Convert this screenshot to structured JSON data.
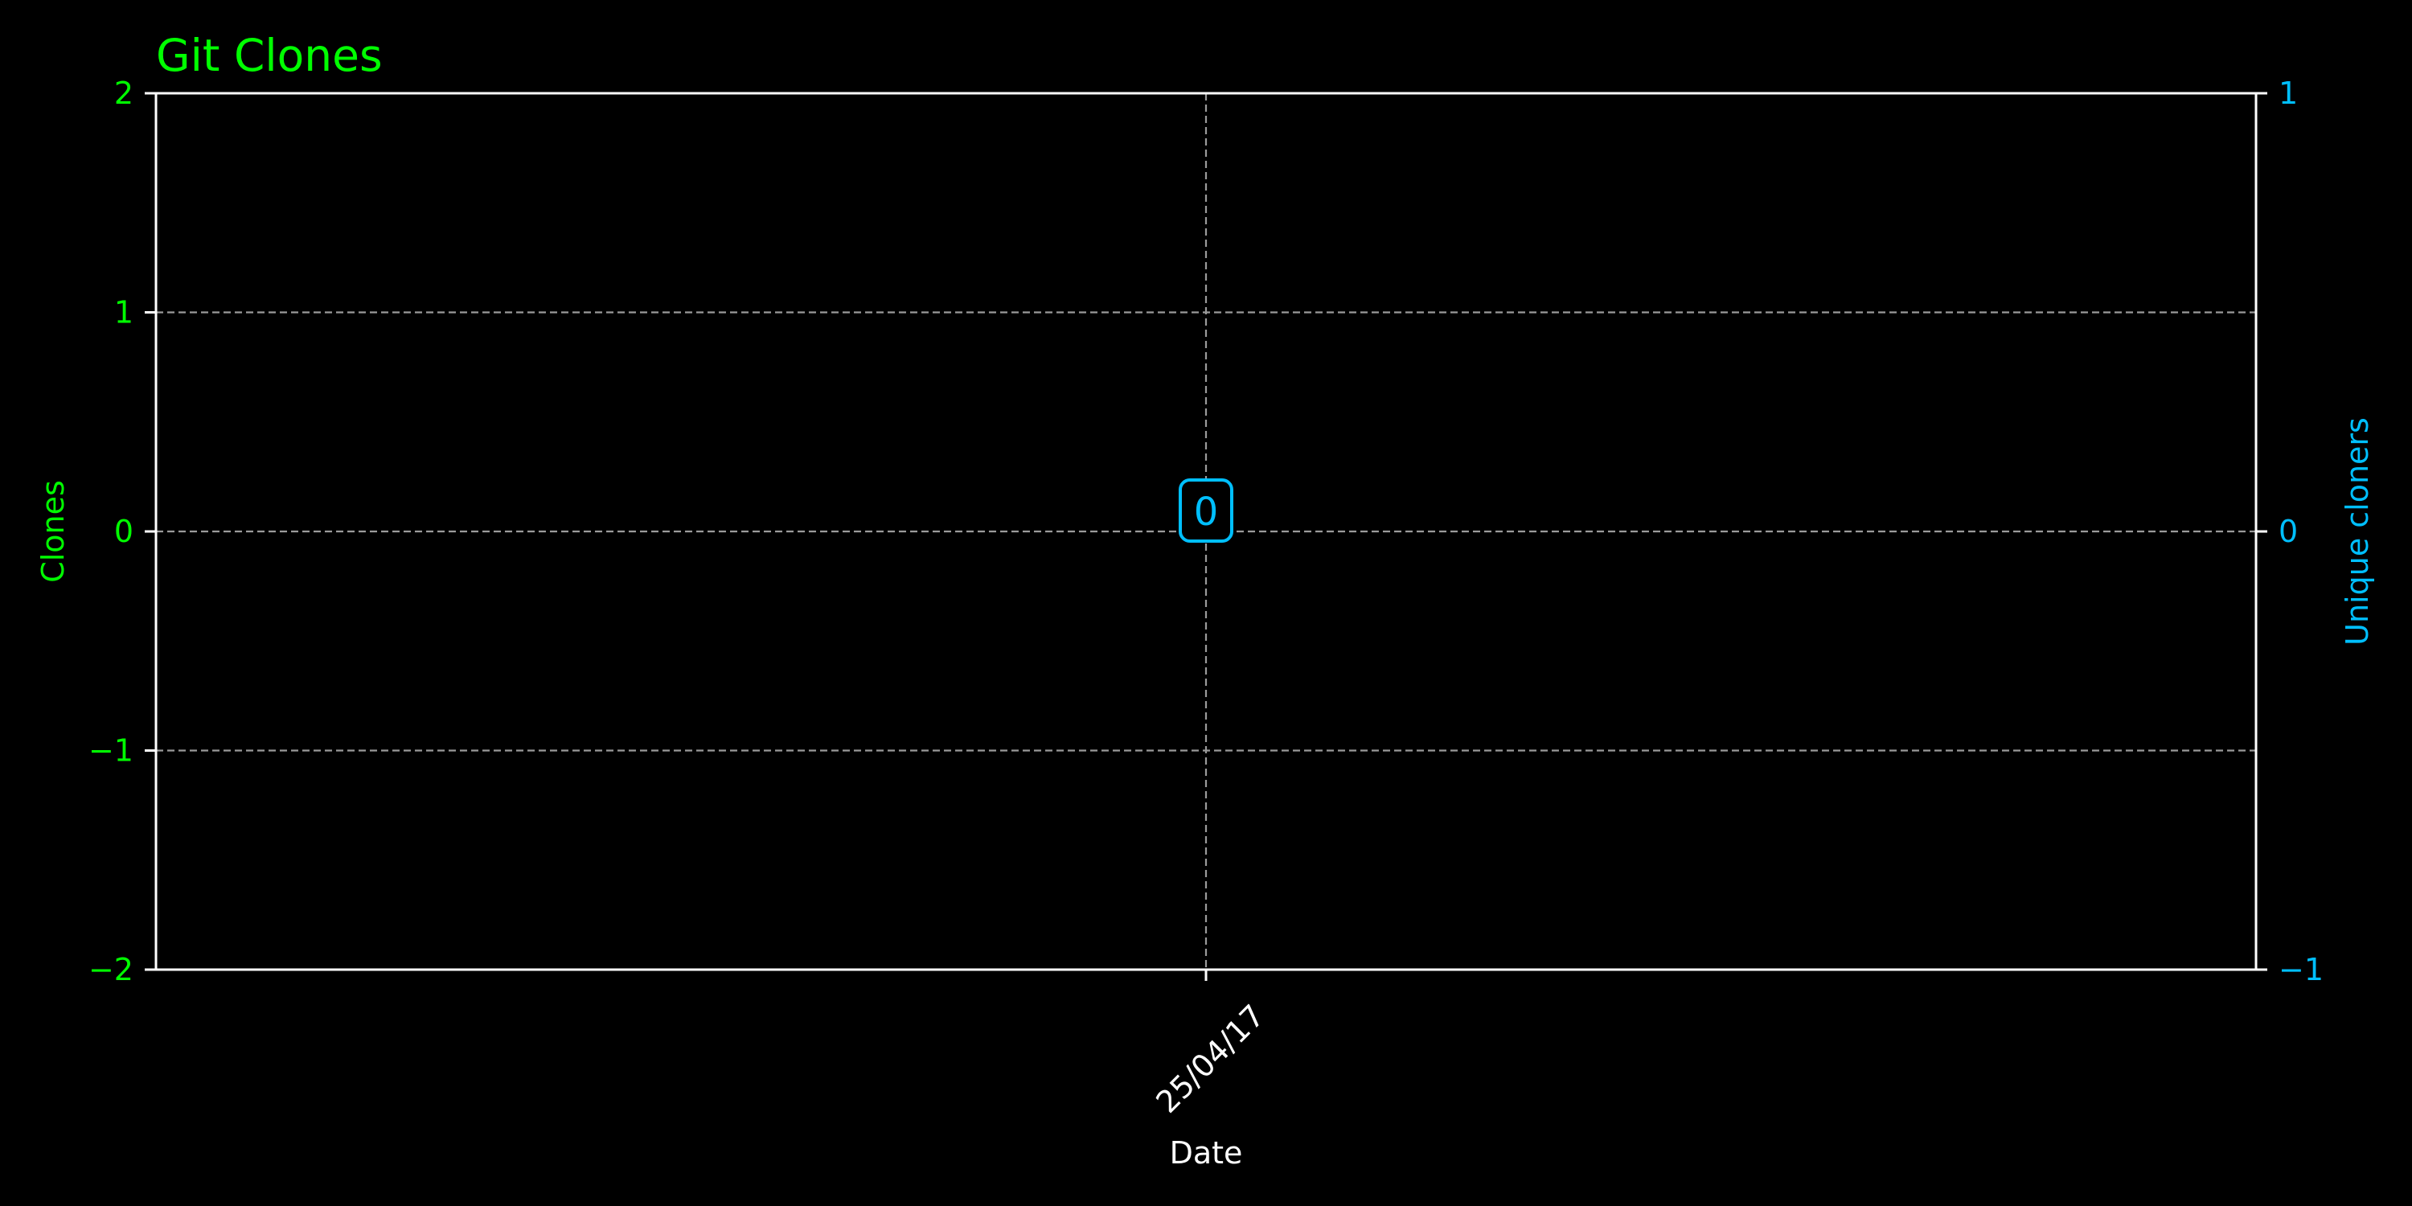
{
  "chart_data": {
    "type": "line",
    "title": "Git Clones",
    "xlabel": "Date",
    "ylabel_left": "Clones",
    "ylabel_right": "Unique cloners",
    "x": [
      "25/04/17"
    ],
    "series": [
      {
        "axis": "left",
        "values": [
          0
        ],
        "color": "#00ff00"
      },
      {
        "axis": "right",
        "values": [
          0
        ],
        "color": "#00bfff"
      }
    ],
    "ylim_left": [
      -2,
      2
    ],
    "ylim_right": [
      -1,
      1
    ],
    "yticks_left": [
      {
        "value": -2,
        "label": "−2"
      },
      {
        "value": -1,
        "label": "−1"
      },
      {
        "value": 0,
        "label": "0"
      },
      {
        "value": 1,
        "label": "1"
      },
      {
        "value": 2,
        "label": "2"
      }
    ],
    "yticks_right": [
      {
        "value": -1,
        "label": "−1"
      },
      {
        "value": 0,
        "label": "0"
      },
      {
        "value": 1,
        "label": "1"
      }
    ],
    "data_labels": [
      {
        "x": "25/04/17",
        "axis": "right",
        "value": 0,
        "text": "0"
      }
    ],
    "grid": true,
    "colors": {
      "background": "#000000",
      "left_axis": "#00ff00",
      "right_axis": "#00bfff",
      "frame": "#ffffff",
      "grid": "#9a9a9a",
      "xaxis_text": "#ffffff"
    }
  }
}
